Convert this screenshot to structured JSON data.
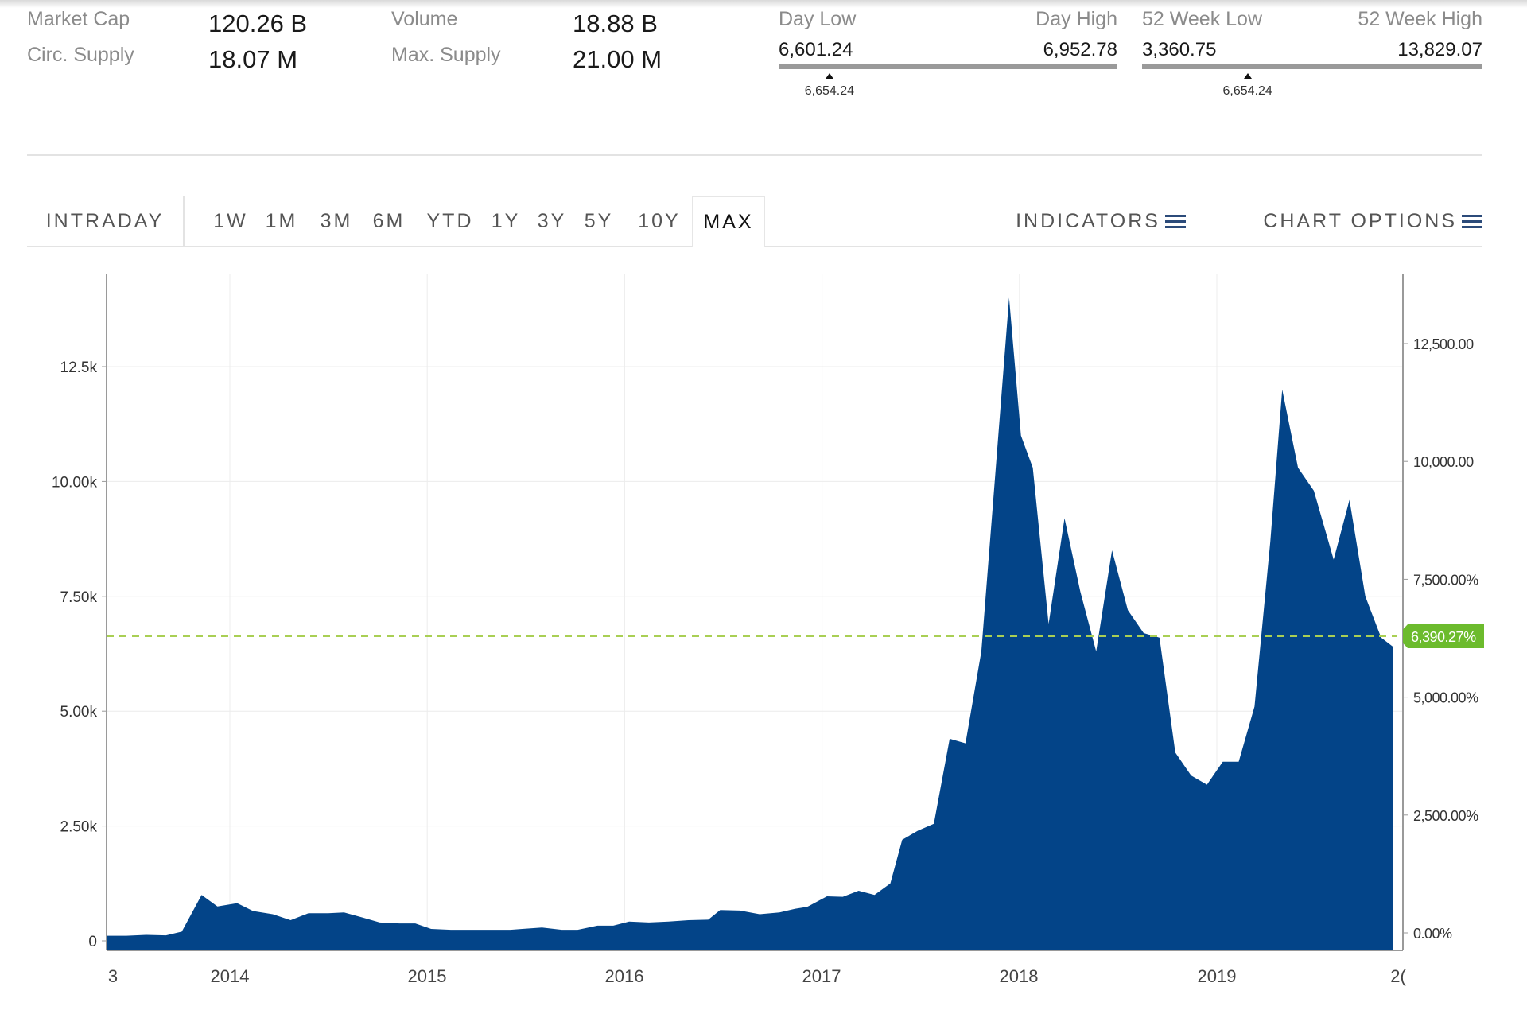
{
  "stats": {
    "market_cap_label": "Market Cap",
    "market_cap_value": "120.26 B",
    "circ_supply_label": "Circ. Supply",
    "circ_supply_value": "18.07 M",
    "volume_label": "Volume",
    "volume_value": "18.88 B",
    "max_supply_label": "Max. Supply",
    "max_supply_value": "21.00 M"
  },
  "day_range": {
    "low_label": "Day Low",
    "high_label": "Day High",
    "low": "6,601.24",
    "high": "6,952.78",
    "current": "6,654.24",
    "marker_fraction": 0.15
  },
  "week52_range": {
    "low_label": "52 Week Low",
    "high_label": "52 Week High",
    "low": "3,360.75",
    "high": "13,829.07",
    "current": "6,654.24",
    "marker_fraction": 0.31
  },
  "toolbar": {
    "intraday": "INTRADAY",
    "periods": [
      "1W",
      "1M",
      "3M",
      "6M",
      "YTD",
      "1Y",
      "3Y",
      "5Y",
      "10Y",
      "MAX"
    ],
    "active_period": "MAX",
    "indicators": "INDICATORS",
    "chart_options": "CHART OPTIONS"
  },
  "colors": {
    "area_fill": "#034488",
    "dashed_line": "#a9cf54",
    "badge": "#6cbb2d",
    "grid": "#ececec"
  },
  "chart_data": {
    "type": "area",
    "x_tick_labels": [
      "3",
      "2014",
      "2015",
      "2016",
      "2017",
      "2018",
      "2019",
      "2("
    ],
    "y_left_ticks": [
      {
        "value": 0,
        "label": "0"
      },
      {
        "value": 2500,
        "label": "2.50k"
      },
      {
        "value": 5000,
        "label": "5.00k"
      },
      {
        "value": 7500,
        "label": "7.50k"
      },
      {
        "value": 10000,
        "label": "10.00k"
      },
      {
        "value": 12500,
        "label": "12.5k"
      }
    ],
    "y_right_ticks": [
      {
        "value": 0,
        "label": "0.00%"
      },
      {
        "value": 2500,
        "label": "2,500.00%"
      },
      {
        "value": 5000,
        "label": "5,000.00%"
      },
      {
        "value": 7500,
        "label": "7,500.00%"
      },
      {
        "value": 10000,
        "label": "10,000.00"
      },
      {
        "value": 12500,
        "label": "12,500.00"
      }
    ],
    "current_value": 6390.27,
    "current_label": "6,390.27%",
    "x_range": [
      2013.4,
      2019.95
    ],
    "ylim_left": [
      -200,
      14400
    ],
    "ylim_right": [
      -300,
      14100
    ],
    "grid": true,
    "points": [
      [
        2013.4,
        110
      ],
      [
        2013.5,
        110
      ],
      [
        2013.6,
        130
      ],
      [
        2013.7,
        120
      ],
      [
        2013.78,
        200
      ],
      [
        2013.88,
        1000
      ],
      [
        2013.96,
        750
      ],
      [
        2014.06,
        820
      ],
      [
        2014.14,
        650
      ],
      [
        2014.24,
        580
      ],
      [
        2014.33,
        450
      ],
      [
        2014.42,
        600
      ],
      [
        2014.52,
        600
      ],
      [
        2014.6,
        620
      ],
      [
        2014.7,
        500
      ],
      [
        2014.78,
        400
      ],
      [
        2014.88,
        380
      ],
      [
        2014.96,
        380
      ],
      [
        2015.04,
        260
      ],
      [
        2015.14,
        240
      ],
      [
        2015.24,
        240
      ],
      [
        2015.34,
        240
      ],
      [
        2015.44,
        240
      ],
      [
        2015.5,
        260
      ],
      [
        2015.6,
        290
      ],
      [
        2015.7,
        240
      ],
      [
        2015.78,
        240
      ],
      [
        2015.88,
        330
      ],
      [
        2015.96,
        330
      ],
      [
        2016.04,
        420
      ],
      [
        2016.14,
        400
      ],
      [
        2016.24,
        420
      ],
      [
        2016.34,
        450
      ],
      [
        2016.44,
        460
      ],
      [
        2016.5,
        670
      ],
      [
        2016.6,
        660
      ],
      [
        2016.7,
        580
      ],
      [
        2016.8,
        620
      ],
      [
        2016.88,
        700
      ],
      [
        2016.94,
        740
      ],
      [
        2017.04,
        970
      ],
      [
        2017.12,
        960
      ],
      [
        2017.2,
        1090
      ],
      [
        2017.28,
        1000
      ],
      [
        2017.36,
        1250
      ],
      [
        2017.42,
        2200
      ],
      [
        2017.5,
        2400
      ],
      [
        2017.58,
        2550
      ],
      [
        2017.66,
        4400
      ],
      [
        2017.74,
        4300
      ],
      [
        2017.82,
        6300
      ],
      [
        2017.88,
        9600
      ],
      [
        2017.96,
        14000
      ],
      [
        2018.02,
        11000
      ],
      [
        2018.08,
        10300
      ],
      [
        2018.16,
        6900
      ],
      [
        2018.24,
        9200
      ],
      [
        2018.32,
        7600
      ],
      [
        2018.4,
        6300
      ],
      [
        2018.48,
        8500
      ],
      [
        2018.56,
        7200
      ],
      [
        2018.64,
        6700
      ],
      [
        2018.72,
        6600
      ],
      [
        2018.8,
        4100
      ],
      [
        2018.88,
        3600
      ],
      [
        2018.96,
        3400
      ],
      [
        2019.04,
        3900
      ],
      [
        2019.12,
        3900
      ],
      [
        2019.2,
        5100
      ],
      [
        2019.28,
        8700
      ],
      [
        2019.34,
        12000
      ],
      [
        2019.42,
        10300
      ],
      [
        2019.5,
        9800
      ],
      [
        2019.6,
        8300
      ],
      [
        2019.68,
        9600
      ],
      [
        2019.76,
        7500
      ],
      [
        2019.84,
        6600
      ],
      [
        2019.9,
        6400
      ]
    ]
  }
}
